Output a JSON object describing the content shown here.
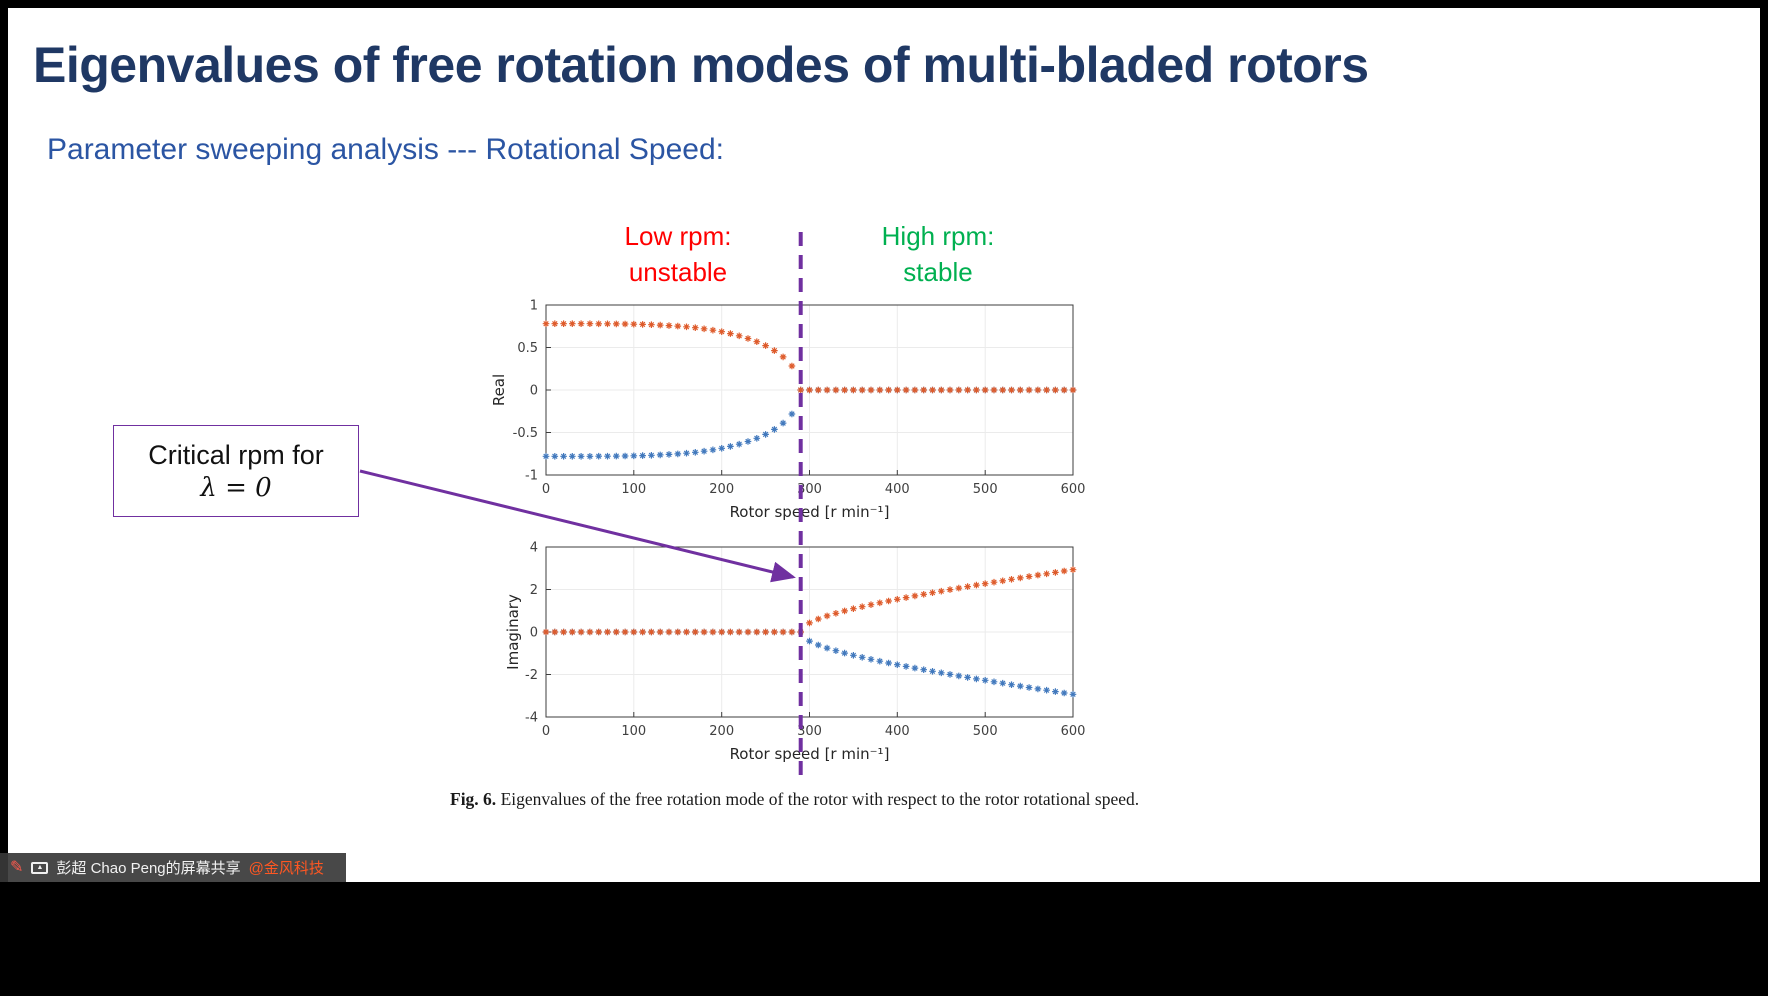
{
  "title": "Eigenvalues of free rotation modes of multi-bladed rotors",
  "subtitle": "Parameter sweeping analysis --- Rotational Speed:",
  "annotations": {
    "low_rpm": {
      "line1": "Low rpm:",
      "line2": "unstable"
    },
    "high_rpm": {
      "line1": "High rpm:",
      "line2": "stable"
    },
    "callout": {
      "line1": "Critical rpm for",
      "line2": "λ = 0"
    },
    "critical_rpm": 290
  },
  "caption": {
    "label": "Fig. 6.",
    "text": "Eigenvalues of the free rotation mode of the rotor with respect to the rotor rotational speed."
  },
  "share_bar": {
    "presenter": "彭超 Chao Peng的屏幕共享",
    "watermark": "@金风科技"
  },
  "colors": {
    "title": "#1F3864",
    "subtitle": "#2B55A3",
    "unstable_red": "#FF0000",
    "stable_green": "#00B050",
    "annotation_purple": "#7030A0",
    "marker_orange": "#DE5B2B",
    "marker_blue": "#4279BD",
    "watermark_orange": "#FF5722"
  },
  "chart_data": [
    {
      "type": "scatter",
      "marker": "*",
      "ylabel": "Real",
      "xlabel": "Rotor speed [r min⁻¹]",
      "xlim": [
        0,
        600
      ],
      "ylim": [
        -1,
        1
      ],
      "xticks": [
        0,
        100,
        200,
        300,
        400,
        500,
        600
      ],
      "yticks": [
        -1,
        -0.5,
        0,
        0.5,
        1
      ],
      "grid": true,
      "x": [
        0,
        10,
        20,
        30,
        40,
        50,
        60,
        70,
        80,
        90,
        100,
        110,
        120,
        130,
        140,
        150,
        160,
        170,
        180,
        190,
        200,
        210,
        220,
        230,
        240,
        250,
        260,
        270,
        280,
        290,
        300,
        310,
        320,
        330,
        340,
        350,
        360,
        370,
        380,
        390,
        400,
        410,
        420,
        430,
        440,
        450,
        460,
        470,
        480,
        490,
        500,
        510,
        520,
        530,
        540,
        550,
        560,
        570,
        580,
        590,
        600
      ],
      "series": [
        {
          "name": "blue-branch",
          "color": "#4279BD",
          "values": [
            -0.78,
            -0.78,
            -0.78,
            -0.78,
            -0.78,
            -0.78,
            -0.779,
            -0.779,
            -0.778,
            -0.776,
            -0.774,
            -0.772,
            -0.768,
            -0.764,
            -0.758,
            -0.752,
            -0.743,
            -0.733,
            -0.72,
            -0.704,
            -0.686,
            -0.664,
            -0.638,
            -0.606,
            -0.568,
            -0.522,
            -0.464,
            -0.389,
            -0.282,
            0,
            0,
            0,
            0,
            0,
            0,
            0,
            0,
            0,
            0,
            0,
            0,
            0,
            0,
            0,
            0,
            0,
            0,
            0,
            0,
            0,
            0,
            0,
            0,
            0,
            0,
            0,
            0,
            0,
            0,
            0,
            0
          ]
        },
        {
          "name": "orange-branch",
          "color": "#DE5B2B",
          "values": [
            0.78,
            0.78,
            0.78,
            0.78,
            0.78,
            0.78,
            0.779,
            0.779,
            0.778,
            0.776,
            0.774,
            0.772,
            0.768,
            0.764,
            0.758,
            0.752,
            0.743,
            0.733,
            0.72,
            0.704,
            0.686,
            0.664,
            0.638,
            0.606,
            0.568,
            0.522,
            0.464,
            0.389,
            0.282,
            0,
            0,
            0,
            0,
            0,
            0,
            0,
            0,
            0,
            0,
            0,
            0,
            0,
            0,
            0,
            0,
            0,
            0,
            0,
            0,
            0,
            0,
            0,
            0,
            0,
            0,
            0,
            0,
            0,
            0,
            0,
            0
          ]
        }
      ]
    },
    {
      "type": "scatter",
      "marker": "*",
      "ylabel": "Imaginary",
      "xlabel": "Rotor speed [r min⁻¹]",
      "xlim": [
        0,
        600
      ],
      "ylim": [
        -4,
        4
      ],
      "xticks": [
        0,
        100,
        200,
        300,
        400,
        500,
        600
      ],
      "yticks": [
        -4,
        -2,
        0,
        2,
        4
      ],
      "grid": true,
      "x": [
        0,
        10,
        20,
        30,
        40,
        50,
        60,
        70,
        80,
        90,
        100,
        110,
        120,
        130,
        140,
        150,
        160,
        170,
        180,
        190,
        200,
        210,
        220,
        230,
        240,
        250,
        260,
        270,
        280,
        290,
        300,
        310,
        320,
        330,
        340,
        350,
        360,
        370,
        380,
        390,
        400,
        410,
        420,
        430,
        440,
        450,
        460,
        470,
        480,
        490,
        500,
        510,
        520,
        530,
        540,
        550,
        560,
        570,
        580,
        590,
        600
      ],
      "series": [
        {
          "name": "blue-branch",
          "color": "#4279BD",
          "values": [
            0,
            0,
            0,
            0,
            0,
            0,
            0,
            0,
            0,
            0,
            0,
            0,
            0,
            0,
            0,
            0,
            0,
            0,
            0,
            0,
            0,
            0,
            0,
            0,
            0,
            0,
            0,
            0,
            0,
            0,
            -0.429,
            -0.612,
            -0.756,
            -0.88,
            -0.991,
            -1.095,
            -1.192,
            -1.284,
            -1.372,
            -1.457,
            -1.539,
            -1.619,
            -1.697,
            -1.774,
            -1.849,
            -1.922,
            -1.995,
            -2.066,
            -2.137,
            -2.206,
            -2.275,
            -2.343,
            -2.411,
            -2.478,
            -2.545,
            -2.611,
            -2.676,
            -2.741,
            -2.806,
            -2.87,
            -2.934
          ]
        },
        {
          "name": "orange-branch",
          "color": "#DE5B2B",
          "values": [
            0,
            0,
            0,
            0,
            0,
            0,
            0,
            0,
            0,
            0,
            0,
            0,
            0,
            0,
            0,
            0,
            0,
            0,
            0,
            0,
            0,
            0,
            0,
            0,
            0,
            0,
            0,
            0,
            0,
            0,
            0.429,
            0.612,
            0.756,
            0.88,
            0.991,
            1.095,
            1.192,
            1.284,
            1.372,
            1.457,
            1.539,
            1.619,
            1.697,
            1.774,
            1.849,
            1.922,
            1.995,
            2.066,
            2.137,
            2.206,
            2.275,
            2.343,
            2.411,
            2.478,
            2.545,
            2.611,
            2.676,
            2.741,
            2.806,
            2.87,
            2.934
          ]
        }
      ]
    }
  ]
}
